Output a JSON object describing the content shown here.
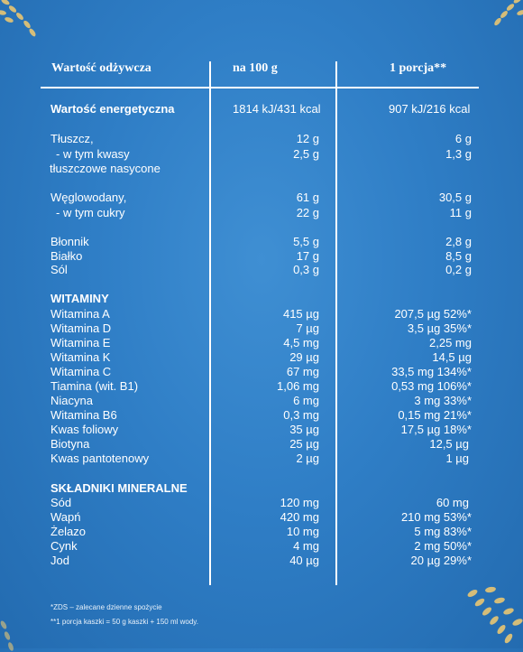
{
  "header": {
    "name_col": "Wartość odżywcza",
    "per100_col": "na 100 g",
    "portion_col": "1 porcja**"
  },
  "rows": [
    {
      "name": "Wartość energetyczna",
      "per100": "1814 kJ/431 kcal",
      "portion": "907 kJ/216 kcal"
    },
    {
      "name": "Tłuszcz,",
      "per100": "12 g",
      "portion": "6 g"
    },
    {
      "name": "- w tym kwasy",
      "per100": "2,5 g",
      "portion": "1,3 g"
    },
    {
      "name": "tłuszczowe nasycone",
      "per100": "",
      "portion": ""
    },
    {
      "name": "Węglowodany,",
      "per100": "61 g",
      "portion": "30,5 g"
    },
    {
      "name": "- w tym cukry",
      "per100": "22 g",
      "portion": "11 g"
    },
    {
      "name": "Błonnik",
      "per100": "5,5 g",
      "portion": "2,8 g"
    },
    {
      "name": "Białko",
      "per100": "17 g",
      "portion": "8,5 g"
    },
    {
      "name": "Sól",
      "per100": "0,3 g",
      "portion": "0,2 g"
    },
    {
      "name": "WITAMINY",
      "per100": "",
      "portion": ""
    },
    {
      "name": "Witamina A",
      "per100": "415 µg",
      "portion": "207,5 µg 52%*"
    },
    {
      "name": "Witamina D",
      "per100": "7 µg",
      "portion": "3,5 µg 35%*"
    },
    {
      "name": "Witamina E",
      "per100": "4,5 mg",
      "portion": "2,25 mg"
    },
    {
      "name": "Witamina K",
      "per100": "29 µg",
      "portion": "14,5 µg"
    },
    {
      "name": "Witamina C",
      "per100": "67 mg",
      "portion": "33,5 mg 134%*"
    },
    {
      "name": "Tiamina (wit. B1)",
      "per100": "1,06 mg",
      "portion": "0,53  mg 106%*"
    },
    {
      "name": "Niacyna",
      "per100": "6 mg",
      "portion": "3 mg 33%*"
    },
    {
      "name": "Witamina B6",
      "per100": "0,3 mg",
      "portion": "0,15 mg 21%*"
    },
    {
      "name": "Kwas foliowy",
      "per100": "35 µg",
      "portion": "17,5 µg 18%*"
    },
    {
      "name": "Biotyna",
      "per100": "25 µg",
      "portion": "12,5 µg"
    },
    {
      "name": "Kwas pantotenowy",
      "per100": "2 µg",
      "portion": "1 µg"
    },
    {
      "name": "SKŁADNIKI MINERALNE",
      "per100": "",
      "portion": ""
    },
    {
      "name": "Sód",
      "per100": "120 mg",
      "portion": "60 mg"
    },
    {
      "name": "Wapń",
      "per100": "420 mg",
      "portion": "210 mg 53%*"
    },
    {
      "name": "Żelazo",
      "per100": "10 mg",
      "portion": "5 mg 83%*"
    },
    {
      "name": "Cynk",
      "per100": "4 mg",
      "portion": "2 mg 50%*"
    },
    {
      "name": "Jod",
      "per100": "40 µg",
      "portion": "20 µg 29%*"
    }
  ],
  "footnotes": {
    "zds": "*ZDS – zalecane dzienne spożycie",
    "portion": "**1 porcja kaszki = 50 g kaszki + 150 ml wody."
  },
  "colors": {
    "background": "#2f7ec6",
    "text": "#ffffff",
    "wheat": "#e8c673"
  }
}
